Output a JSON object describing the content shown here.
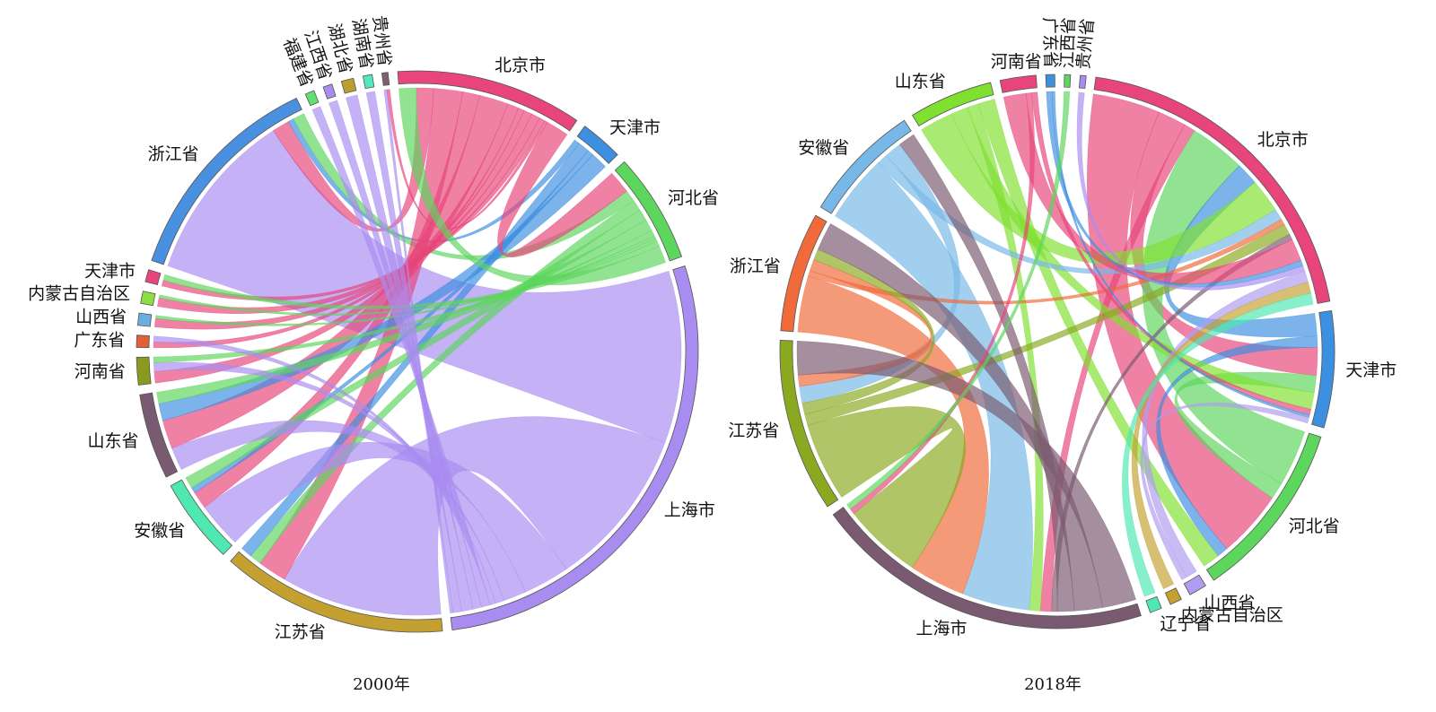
{
  "chart_data": [
    {
      "type": "chord",
      "title": "2000年",
      "link_color": "target",
      "nodes": [
        {
          "name": "北京市",
          "color": "#e8457a"
        },
        {
          "name": "天津市",
          "color": "#3d8fe0"
        },
        {
          "name": "河北省",
          "color": "#5dd65d"
        },
        {
          "name": "上海市",
          "color": "#a98cf0"
        },
        {
          "name": "江苏省",
          "color": "#c4a030"
        },
        {
          "name": "安徽省",
          "color": "#4ee8b0"
        },
        {
          "name": "山东省",
          "color": "#7a5a70"
        },
        {
          "name": "河南省",
          "color": "#8a9a20"
        },
        {
          "name": "广东省",
          "color": "#e0603a"
        },
        {
          "name": "山西省",
          "color": "#6aaee0"
        },
        {
          "name": "内蒙古自治区",
          "color": "#8ae040"
        },
        {
          "name": "天津市",
          "color": "#e8457a"
        },
        {
          "name": "浙江省",
          "color": "#4a90e0"
        },
        {
          "name": "福建省",
          "color": "#60e070"
        },
        {
          "name": "江西省",
          "color": "#a88cf0"
        },
        {
          "name": "湖北省",
          "color": "#b8a030"
        },
        {
          "name": "湖南省",
          "color": "#50e8c0"
        },
        {
          "name": "贵州省",
          "color": "#806070"
        }
      ],
      "links": [
        {
          "source": 12,
          "target": 3,
          "value": 30
        },
        {
          "source": 12,
          "target": 0,
          "value": 3
        },
        {
          "source": 12,
          "target": 1,
          "value": 1
        },
        {
          "source": 12,
          "target": 2,
          "value": 2
        },
        {
          "source": 4,
          "target": 3,
          "value": 28
        },
        {
          "source": 4,
          "target": 0,
          "value": 5
        },
        {
          "source": 4,
          "target": 2,
          "value": 2
        },
        {
          "source": 4,
          "target": 1,
          "value": 2
        },
        {
          "source": 5,
          "target": 3,
          "value": 8
        },
        {
          "source": 5,
          "target": 0,
          "value": 3
        },
        {
          "source": 5,
          "target": 1,
          "value": 1
        },
        {
          "source": 5,
          "target": 2,
          "value": 2
        },
        {
          "source": 6,
          "target": 3,
          "value": 4
        },
        {
          "source": 6,
          "target": 0,
          "value": 5
        },
        {
          "source": 6,
          "target": 1,
          "value": 3
        },
        {
          "source": 6,
          "target": 2,
          "value": 2
        },
        {
          "source": 7,
          "target": 0,
          "value": 2
        },
        {
          "source": 7,
          "target": 3,
          "value": 1.5
        },
        {
          "source": 7,
          "target": 2,
          "value": 1
        },
        {
          "source": 8,
          "target": 0,
          "value": 1
        },
        {
          "source": 8,
          "target": 3,
          "value": 1
        },
        {
          "source": 9,
          "target": 0,
          "value": 1.5
        },
        {
          "source": 9,
          "target": 2,
          "value": 0.5
        },
        {
          "source": 10,
          "target": 0,
          "value": 1.5
        },
        {
          "source": 10,
          "target": 2,
          "value": 0.5
        },
        {
          "source": 11,
          "target": 0,
          "value": 1
        },
        {
          "source": 11,
          "target": 2,
          "value": 1
        },
        {
          "source": 13,
          "target": 3,
          "value": 1.5
        },
        {
          "source": 14,
          "target": 3,
          "value": 1.5
        },
        {
          "source": 15,
          "target": 3,
          "value": 2
        },
        {
          "source": 16,
          "target": 3,
          "value": 1.5
        },
        {
          "source": 17,
          "target": 3,
          "value": 0.5
        },
        {
          "source": 17,
          "target": 0,
          "value": 0.5
        },
        {
          "source": 0,
          "target": 2,
          "value": 3
        },
        {
          "source": 2,
          "target": 0,
          "value": 4
        }
      ]
    },
    {
      "type": "chord",
      "title": "2018年",
      "link_color": "source",
      "nodes": [
        {
          "name": "北京市",
          "color": "#e8457a"
        },
        {
          "name": "天津市",
          "color": "#3d8fe0"
        },
        {
          "name": "河北省",
          "color": "#5dd65d"
        },
        {
          "name": "山西省",
          "color": "#b09cf0"
        },
        {
          "name": "内蒙古自治区",
          "color": "#c4a030"
        },
        {
          "name": "辽宁省",
          "color": "#4ee8b0"
        },
        {
          "name": "上海市",
          "color": "#7a5a70"
        },
        {
          "name": "江苏省",
          "color": "#8aa820"
        },
        {
          "name": "浙江省",
          "color": "#f06a3a"
        },
        {
          "name": "安徽省",
          "color": "#78b8e8"
        },
        {
          "name": "山东省",
          "color": "#80e030"
        },
        {
          "name": "河南省",
          "color": "#e8457a"
        },
        {
          "name": "广东省",
          "color": "#3d8fe0"
        },
        {
          "name": "江西省",
          "color": "#5dd65d"
        },
        {
          "name": "贵州省",
          "color": "#a98cf0"
        }
      ],
      "links": [
        {
          "source": 0,
          "target": 2,
          "value": 12
        },
        {
          "source": 0,
          "target": 1,
          "value": 5
        },
        {
          "source": 0,
          "target": 6,
          "value": 2
        },
        {
          "source": 2,
          "target": 0,
          "value": 10
        },
        {
          "source": 2,
          "target": 1,
          "value": 3
        },
        {
          "source": 1,
          "target": 0,
          "value": 4
        },
        {
          "source": 1,
          "target": 2,
          "value": 2
        },
        {
          "source": 10,
          "target": 0,
          "value": 6
        },
        {
          "source": 10,
          "target": 1,
          "value": 3
        },
        {
          "source": 10,
          "target": 6,
          "value": 2
        },
        {
          "source": 10,
          "target": 2,
          "value": 3
        },
        {
          "source": 9,
          "target": 6,
          "value": 12
        },
        {
          "source": 9,
          "target": 0,
          "value": 2
        },
        {
          "source": 9,
          "target": 7,
          "value": 3
        },
        {
          "source": 8,
          "target": 6,
          "value": 10
        },
        {
          "source": 8,
          "target": 0,
          "value": 1
        },
        {
          "source": 8,
          "target": 7,
          "value": 2
        },
        {
          "source": 7,
          "target": 6,
          "value": 14
        },
        {
          "source": 7,
          "target": 0,
          "value": 2
        },
        {
          "source": 7,
          "target": 8,
          "value": 2
        },
        {
          "source": 6,
          "target": 7,
          "value": 6
        },
        {
          "source": 6,
          "target": 8,
          "value": 5
        },
        {
          "source": 6,
          "target": 9,
          "value": 3
        },
        {
          "source": 6,
          "target": 0,
          "value": 1
        },
        {
          "source": 11,
          "target": 0,
          "value": 4
        },
        {
          "source": 11,
          "target": 6,
          "value": 1
        },
        {
          "source": 11,
          "target": 1,
          "value": 1
        },
        {
          "source": 12,
          "target": 0,
          "value": 1
        },
        {
          "source": 12,
          "target": 1,
          "value": 0.5
        },
        {
          "source": 13,
          "target": 6,
          "value": 1
        },
        {
          "source": 14,
          "target": 0,
          "value": 1
        },
        {
          "source": 3,
          "target": 0,
          "value": 2
        },
        {
          "source": 3,
          "target": 1,
          "value": 1
        },
        {
          "source": 4,
          "target": 0,
          "value": 2
        },
        {
          "source": 5,
          "target": 0,
          "value": 2
        }
      ]
    }
  ]
}
